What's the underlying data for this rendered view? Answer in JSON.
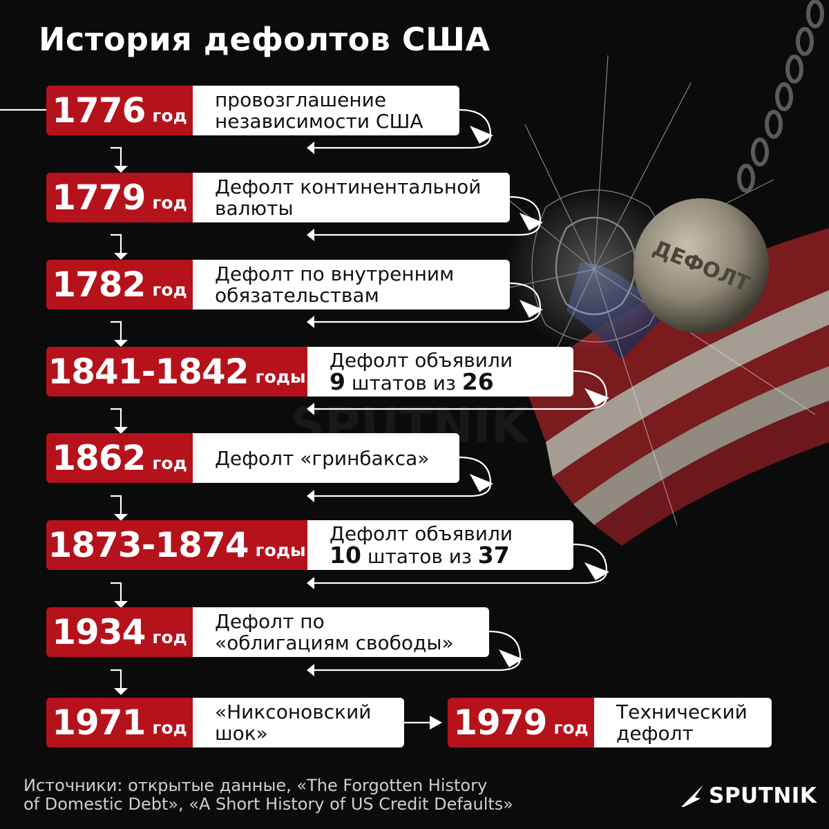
{
  "title": "История дефолтов США",
  "ball_label": "ДЕФОЛТ",
  "colors": {
    "accent_red": "#b5121b",
    "background": "#0b0b0c",
    "box": "#ffffff"
  },
  "timeline": [
    {
      "year": "1776",
      "unit": "год",
      "line1": "провозглашение",
      "line2": "независимости США"
    },
    {
      "year": "1779",
      "unit": "год",
      "line1": "Дефолт континентальной",
      "line2": "валюты"
    },
    {
      "year": "1782",
      "unit": "год",
      "line1": "Дефолт по внутренним",
      "line2": "обязательствам"
    },
    {
      "year": "1841-1842",
      "unit": "годы",
      "line1": "Дефолт объявили",
      "line2_a": "9",
      "line2_b": " штатов из ",
      "line2_c": "26"
    },
    {
      "year": "1862",
      "unit": "год",
      "line1": "Дефолт «гринбакса»"
    },
    {
      "year": "1873-1874",
      "unit": "годы",
      "line1": "Дефолт объявили",
      "line2_a": "10",
      "line2_b": " штатов из ",
      "line2_c": "37"
    },
    {
      "year": "1934",
      "unit": "год",
      "line1": "Дефолт по",
      "line2": "«облигациям свободы»"
    },
    {
      "year": "1971",
      "unit": "год",
      "line1": "«Никсоновский",
      "line2": "шок»"
    },
    {
      "year": "1979",
      "unit": "год",
      "line1": "Технический",
      "line2": "дефолт"
    }
  ],
  "sources": {
    "line1": "Источники: открытые данные, «The Forgotten History",
    "line2": "of Domestic Debt», «A Short History of US Credit Defaults»"
  },
  "logo": "SPUTNIK"
}
